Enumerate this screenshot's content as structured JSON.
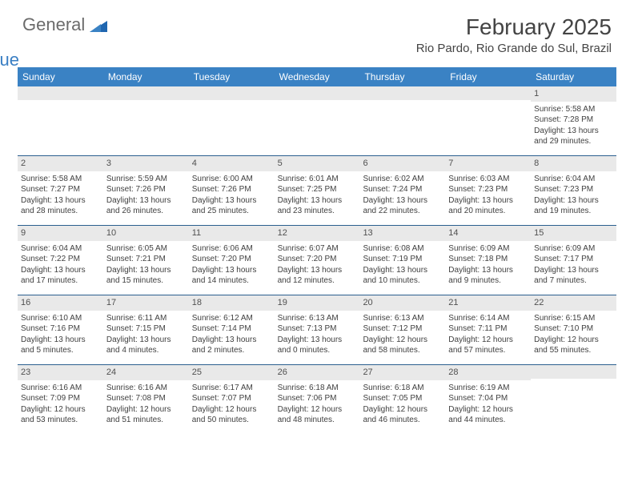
{
  "brand": {
    "first": "General",
    "second": "Blue"
  },
  "title": "February 2025",
  "location": "Rio Pardo, Rio Grande do Sul, Brazil",
  "colors": {
    "header_bar": "#3a82c4",
    "header_text": "#ffffff",
    "daynum_bg": "#e9e9e9",
    "week_divider": "#2b5f8f",
    "body_text": "#404040",
    "title_text": "#444444",
    "logo_gray": "#6b6b6b",
    "logo_blue": "#3a7fc4",
    "background": "#ffffff"
  },
  "fonts": {
    "title_pt": 28,
    "location_pt": 15,
    "weekday_pt": 12,
    "daynum_pt": 11,
    "body_pt": 10
  },
  "weekdays": [
    "Sunday",
    "Monday",
    "Tuesday",
    "Wednesday",
    "Thursday",
    "Friday",
    "Saturday"
  ],
  "weeks": [
    [
      null,
      null,
      null,
      null,
      null,
      null,
      {
        "n": "1",
        "sunrise": "Sunrise: 5:58 AM",
        "sunset": "Sunset: 7:28 PM",
        "day1": "Daylight: 13 hours",
        "day2": "and 29 minutes."
      }
    ],
    [
      {
        "n": "2",
        "sunrise": "Sunrise: 5:58 AM",
        "sunset": "Sunset: 7:27 PM",
        "day1": "Daylight: 13 hours",
        "day2": "and 28 minutes."
      },
      {
        "n": "3",
        "sunrise": "Sunrise: 5:59 AM",
        "sunset": "Sunset: 7:26 PM",
        "day1": "Daylight: 13 hours",
        "day2": "and 26 minutes."
      },
      {
        "n": "4",
        "sunrise": "Sunrise: 6:00 AM",
        "sunset": "Sunset: 7:26 PM",
        "day1": "Daylight: 13 hours",
        "day2": "and 25 minutes."
      },
      {
        "n": "5",
        "sunrise": "Sunrise: 6:01 AM",
        "sunset": "Sunset: 7:25 PM",
        "day1": "Daylight: 13 hours",
        "day2": "and 23 minutes."
      },
      {
        "n": "6",
        "sunrise": "Sunrise: 6:02 AM",
        "sunset": "Sunset: 7:24 PM",
        "day1": "Daylight: 13 hours",
        "day2": "and 22 minutes."
      },
      {
        "n": "7",
        "sunrise": "Sunrise: 6:03 AM",
        "sunset": "Sunset: 7:23 PM",
        "day1": "Daylight: 13 hours",
        "day2": "and 20 minutes."
      },
      {
        "n": "8",
        "sunrise": "Sunrise: 6:04 AM",
        "sunset": "Sunset: 7:23 PM",
        "day1": "Daylight: 13 hours",
        "day2": "and 19 minutes."
      }
    ],
    [
      {
        "n": "9",
        "sunrise": "Sunrise: 6:04 AM",
        "sunset": "Sunset: 7:22 PM",
        "day1": "Daylight: 13 hours",
        "day2": "and 17 minutes."
      },
      {
        "n": "10",
        "sunrise": "Sunrise: 6:05 AM",
        "sunset": "Sunset: 7:21 PM",
        "day1": "Daylight: 13 hours",
        "day2": "and 15 minutes."
      },
      {
        "n": "11",
        "sunrise": "Sunrise: 6:06 AM",
        "sunset": "Sunset: 7:20 PM",
        "day1": "Daylight: 13 hours",
        "day2": "and 14 minutes."
      },
      {
        "n": "12",
        "sunrise": "Sunrise: 6:07 AM",
        "sunset": "Sunset: 7:20 PM",
        "day1": "Daylight: 13 hours",
        "day2": "and 12 minutes."
      },
      {
        "n": "13",
        "sunrise": "Sunrise: 6:08 AM",
        "sunset": "Sunset: 7:19 PM",
        "day1": "Daylight: 13 hours",
        "day2": "and 10 minutes."
      },
      {
        "n": "14",
        "sunrise": "Sunrise: 6:09 AM",
        "sunset": "Sunset: 7:18 PM",
        "day1": "Daylight: 13 hours",
        "day2": "and 9 minutes."
      },
      {
        "n": "15",
        "sunrise": "Sunrise: 6:09 AM",
        "sunset": "Sunset: 7:17 PM",
        "day1": "Daylight: 13 hours",
        "day2": "and 7 minutes."
      }
    ],
    [
      {
        "n": "16",
        "sunrise": "Sunrise: 6:10 AM",
        "sunset": "Sunset: 7:16 PM",
        "day1": "Daylight: 13 hours",
        "day2": "and 5 minutes."
      },
      {
        "n": "17",
        "sunrise": "Sunrise: 6:11 AM",
        "sunset": "Sunset: 7:15 PM",
        "day1": "Daylight: 13 hours",
        "day2": "and 4 minutes."
      },
      {
        "n": "18",
        "sunrise": "Sunrise: 6:12 AM",
        "sunset": "Sunset: 7:14 PM",
        "day1": "Daylight: 13 hours",
        "day2": "and 2 minutes."
      },
      {
        "n": "19",
        "sunrise": "Sunrise: 6:13 AM",
        "sunset": "Sunset: 7:13 PM",
        "day1": "Daylight: 13 hours",
        "day2": "and 0 minutes."
      },
      {
        "n": "20",
        "sunrise": "Sunrise: 6:13 AM",
        "sunset": "Sunset: 7:12 PM",
        "day1": "Daylight: 12 hours",
        "day2": "and 58 minutes."
      },
      {
        "n": "21",
        "sunrise": "Sunrise: 6:14 AM",
        "sunset": "Sunset: 7:11 PM",
        "day1": "Daylight: 12 hours",
        "day2": "and 57 minutes."
      },
      {
        "n": "22",
        "sunrise": "Sunrise: 6:15 AM",
        "sunset": "Sunset: 7:10 PM",
        "day1": "Daylight: 12 hours",
        "day2": "and 55 minutes."
      }
    ],
    [
      {
        "n": "23",
        "sunrise": "Sunrise: 6:16 AM",
        "sunset": "Sunset: 7:09 PM",
        "day1": "Daylight: 12 hours",
        "day2": "and 53 minutes."
      },
      {
        "n": "24",
        "sunrise": "Sunrise: 6:16 AM",
        "sunset": "Sunset: 7:08 PM",
        "day1": "Daylight: 12 hours",
        "day2": "and 51 minutes."
      },
      {
        "n": "25",
        "sunrise": "Sunrise: 6:17 AM",
        "sunset": "Sunset: 7:07 PM",
        "day1": "Daylight: 12 hours",
        "day2": "and 50 minutes."
      },
      {
        "n": "26",
        "sunrise": "Sunrise: 6:18 AM",
        "sunset": "Sunset: 7:06 PM",
        "day1": "Daylight: 12 hours",
        "day2": "and 48 minutes."
      },
      {
        "n": "27",
        "sunrise": "Sunrise: 6:18 AM",
        "sunset": "Sunset: 7:05 PM",
        "day1": "Daylight: 12 hours",
        "day2": "and 46 minutes."
      },
      {
        "n": "28",
        "sunrise": "Sunrise: 6:19 AM",
        "sunset": "Sunset: 7:04 PM",
        "day1": "Daylight: 12 hours",
        "day2": "and 44 minutes."
      },
      null
    ]
  ]
}
